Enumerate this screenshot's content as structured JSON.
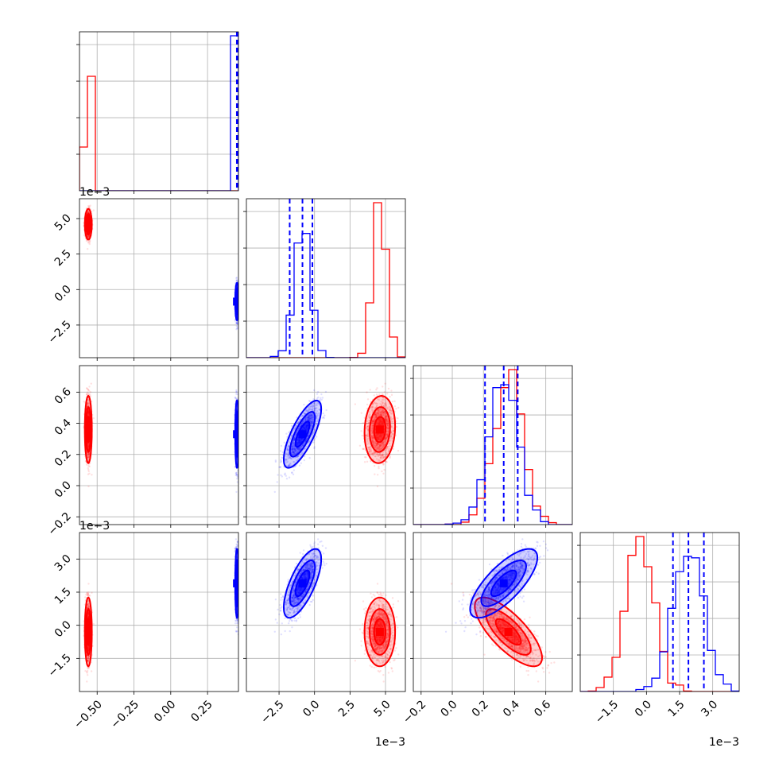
{
  "chart_data": {
    "type": "scatter",
    "colors": {
      "red": "#ff0000",
      "blue": "#0000ff",
      "grid": "#b0b0b0"
    },
    "offset_text": "1e−3",
    "series": [
      {
        "color": "red",
        "means": [
          -0.56,
          4.6,
          0.36,
          -0.3
        ],
        "sds": [
          0.01,
          0.45,
          0.09,
          0.65
        ],
        "correlations": {
          "p1_p2": 0.0,
          "p1_p3": 0.0,
          "p2_p3": 0.1,
          "p1_p4": 0.0,
          "p2_p4": 0.0,
          "p3_p4": -0.75
        }
      },
      {
        "color": "blue",
        "means": [
          0.45,
          -0.85,
          0.33,
          1.9
        ],
        "sds": [
          0.005,
          0.55,
          0.09,
          0.65
        ],
        "correlations": {
          "p1_p2": 0.0,
          "p1_p3": 0.0,
          "p2_p3": 0.75,
          "p1_p4": 0.0,
          "p2_p4": 0.7,
          "p3_p4": 0.75
        },
        "quantiles": [
          [
            0.449,
            0.451,
            0.453
          ],
          [
            -1.75,
            -0.85,
            -0.15
          ],
          [
            0.21,
            0.33,
            0.42
          ],
          [
            1.2,
            1.9,
            2.6
          ]
        ]
      }
    ],
    "parameters": [
      {
        "range": [
          -0.62,
          0.46
        ],
        "ticks": [
          "-0.50",
          "-0.25",
          "0.00",
          "0.25"
        ],
        "tick_values": [
          -0.5,
          -0.25,
          0,
          0.25
        ]
      },
      {
        "range": [
          -4.8,
          6.4
        ],
        "ticks": [
          "-2.5",
          "0.0",
          "2.5",
          "5.0"
        ],
        "tick_values": [
          -2.5,
          0,
          2.5,
          5.0
        ],
        "offset": "1e-3"
      },
      {
        "range": [
          -0.25,
          0.77
        ],
        "ticks": [
          "-0.2",
          "0.0",
          "0.2",
          "0.4",
          "0.6"
        ],
        "tick_values": [
          -0.2,
          0,
          0.2,
          0.4,
          0.6
        ]
      },
      {
        "range": [
          -3.0,
          4.2
        ],
        "ticks": [
          "-1.5",
          "0.0",
          "1.5",
          "3.0"
        ],
        "tick_values": [
          -1.5,
          0,
          1.5,
          3.0
        ],
        "offset": "1e-3"
      }
    ],
    "diag_hist_ticks": 4,
    "grid": true
  }
}
